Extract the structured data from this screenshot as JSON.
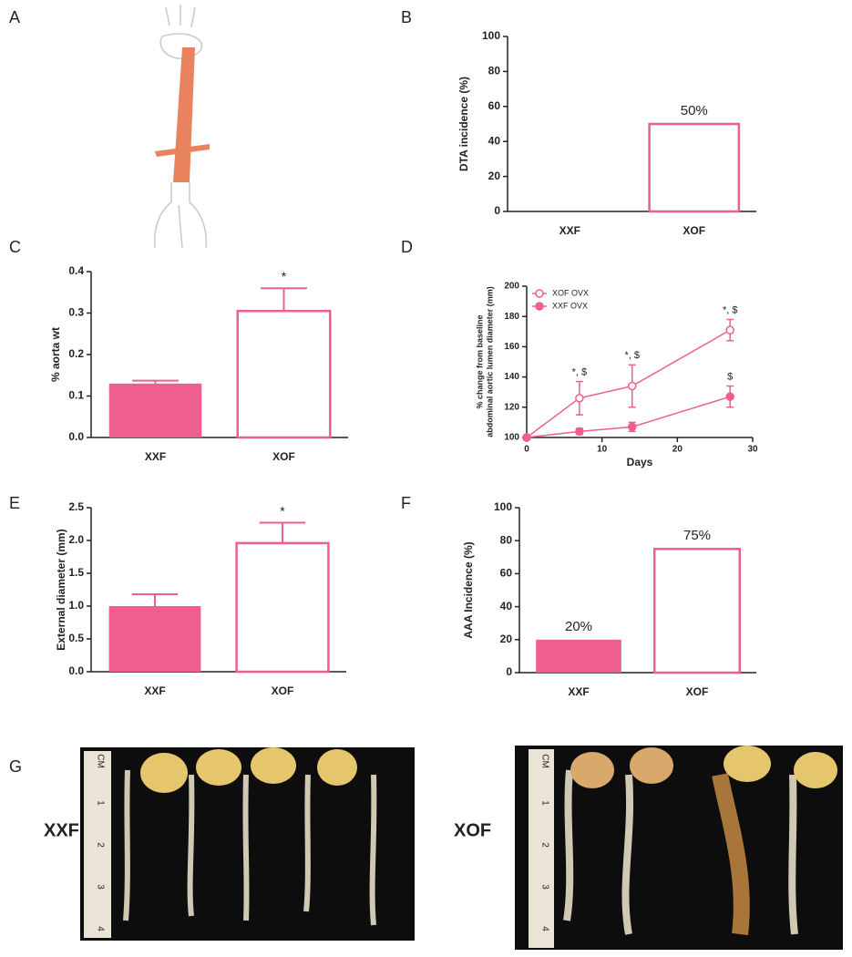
{
  "panel_labels": [
    "A",
    "B",
    "C",
    "D",
    "E",
    "F",
    "G"
  ],
  "chart_data": [
    {
      "type": "bar",
      "ylabel": "DTA incidence (%)",
      "categories": [
        "XXF",
        "XOF"
      ],
      "values": [
        0,
        50
      ],
      "value_labels": [
        null,
        "50%"
      ],
      "color": "#ee5f8f",
      "filled": [
        true,
        false
      ],
      "ylim": [
        0,
        100
      ],
      "yticks": [
        0,
        20,
        40,
        60,
        80,
        100
      ]
    },
    {
      "type": "bar",
      "ylabel": "% aorta wt",
      "categories": [
        "XXF",
        "XOF"
      ],
      "values": [
        0.13,
        0.305
      ],
      "errors": [
        0.007,
        0.055
      ],
      "annotations": [
        null,
        "*"
      ],
      "color": "#ee5f8f",
      "filled": [
        true,
        false
      ],
      "ylim": [
        0,
        0.4
      ],
      "yticks": [
        {
          "value": 0,
          "label": "0.0"
        },
        0.1,
        0.2,
        0.3,
        0.4
      ]
    },
    {
      "type": "line",
      "ylabel": [
        "% change from baseline",
        "abdominal aortic lumen diameter (mm)"
      ],
      "xlabel": "Days",
      "x": [
        0,
        7,
        14,
        27
      ],
      "series": [
        {
          "name": "XOF OVX",
          "color": "#ee5f8f",
          "filled": false,
          "values": [
            100,
            126,
            134,
            171
          ],
          "errors": [
            0,
            11,
            14,
            7
          ],
          "point_labels": [
            null,
            "*, $",
            "*, $",
            "*, $"
          ]
        },
        {
          "name": "XXF OVX",
          "color": "#ee5f8f",
          "filled": true,
          "values": [
            100,
            104,
            107,
            127
          ],
          "errors": [
            0,
            2,
            3,
            7
          ],
          "point_labels": [
            null,
            null,
            null,
            "$"
          ]
        }
      ],
      "xlim": [
        0,
        30
      ],
      "xticks": [
        0,
        10,
        20,
        30
      ],
      "ylim": [
        100,
        200
      ],
      "yticks": [
        100,
        120,
        140,
        160,
        180,
        200
      ],
      "legend": "upper left"
    },
    {
      "type": "bar",
      "ylabel": "External diameter (mm)",
      "categories": [
        "XXF",
        "XOF"
      ],
      "values": [
        1.0,
        1.96
      ],
      "errors": [
        0.18,
        0.31
      ],
      "annotations": [
        null,
        "*"
      ],
      "color": "#ee5f8f",
      "filled": [
        true,
        false
      ],
      "ylim": [
        0,
        2.5
      ],
      "yticks": [
        {
          "value": 0,
          "label": "0.0"
        },
        0.5,
        {
          "value": 1,
          "label": "1.0"
        },
        1.5,
        {
          "value": 2,
          "label": "2.0"
        },
        2.5
      ]
    },
    {
      "type": "bar",
      "ylabel": "AAA Incidence (%)",
      "categories": [
        "XXF",
        "XOF"
      ],
      "values": [
        20,
        75
      ],
      "value_labels": [
        "20%",
        "75%"
      ],
      "color": "#ee5f8f",
      "filled": [
        true,
        false
      ],
      "ylim": [
        0,
        100
      ],
      "yticks": [
        0,
        20,
        40,
        60,
        80,
        100
      ]
    }
  ],
  "photos": {
    "labels": [
      "XXF",
      "XOF"
    ],
    "ruler": [
      "CM",
      "1",
      "2",
      "3",
      "4"
    ]
  }
}
